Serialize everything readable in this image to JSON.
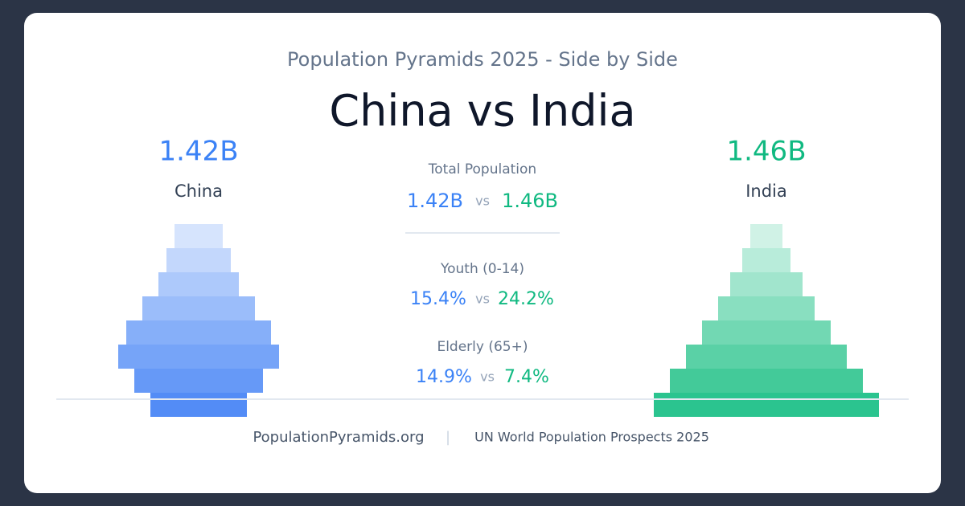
{
  "header": {
    "subtitle": "Population Pyramids 2025 - Side by Side",
    "title": "China vs India"
  },
  "countries": [
    {
      "total": "1.42B",
      "name": "China"
    },
    {
      "total": "1.46B",
      "name": "India"
    }
  ],
  "comparison": [
    {
      "label": "Total Population",
      "left": "1.42B",
      "separator": "vs",
      "right": "1.46B"
    },
    {
      "label": "Youth (0-14)",
      "left": "15.4%",
      "separator": "vs",
      "right": "24.2%"
    },
    {
      "label": "Elderly (65+)",
      "left": "14.9%",
      "separator": "vs",
      "right": "7.4%"
    }
  ],
  "footer": {
    "source": "PopulationPyramids.org",
    "separator": "|",
    "note": "UN World Population Prospects 2025"
  }
}
